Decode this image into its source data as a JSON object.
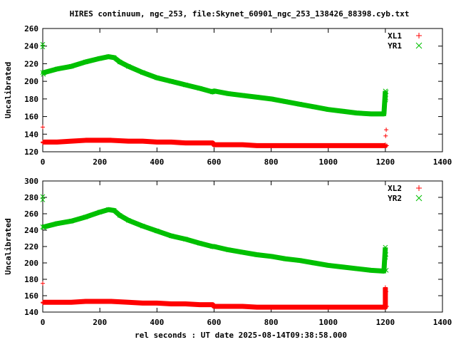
{
  "title": "HIRES continuum, ngc_253, file:Skynet_60901_ngc_253_138426_88398.cyb.txt",
  "xlabel": "rel seconds : UT date 2025-08-14T09:38:58.000",
  "chart_data": [
    {
      "type": "scatter",
      "ylabel": "Uncalibrated",
      "xlim": [
        0,
        1400
      ],
      "ylim": [
        120,
        260
      ],
      "xticks": [
        "0",
        "200",
        "400",
        "600",
        "800",
        "1000",
        "1200",
        "1400"
      ],
      "yticks": [
        "120",
        "140",
        "160",
        "180",
        "200",
        "220",
        "240",
        "260"
      ],
      "legend_position": "top-right",
      "series": [
        {
          "name": "XL1",
          "color": "#ff0000",
          "marker": "plus",
          "x": [
            0,
            0,
            1,
            1,
            3,
            5,
            50,
            100,
            150,
            200,
            240,
            300,
            350,
            400,
            450,
            500,
            550,
            595,
            600,
            650,
            700,
            750,
            800,
            850,
            900,
            950,
            1000,
            1050,
            1100,
            1150,
            1200,
            1200,
            1201,
            1203,
            1205
          ],
          "y": [
            148,
            131,
            131,
            130,
            131,
            131,
            131,
            132,
            133,
            133,
            133,
            132,
            132,
            131,
            131,
            130,
            130,
            130,
            128,
            128,
            128,
            127,
            127,
            127,
            127,
            127,
            127,
            127,
            127,
            127,
            127,
            128,
            138,
            145,
            127
          ]
        },
        {
          "name": "YR1",
          "color": "#00c000",
          "marker": "cross",
          "x": [
            0,
            0,
            0,
            2,
            5,
            50,
            100,
            150,
            200,
            230,
            250,
            270,
            300,
            350,
            400,
            450,
            500,
            550,
            595,
            600,
            650,
            700,
            750,
            800,
            850,
            900,
            950,
            1000,
            1050,
            1100,
            1150,
            1195,
            1200,
            1201,
            1202,
            1203
          ],
          "y": [
            242,
            239,
            210,
            208,
            210,
            214,
            217,
            222,
            226,
            228,
            227,
            222,
            217,
            210,
            204,
            200,
            196,
            192,
            188,
            189,
            186,
            184,
            182,
            180,
            177,
            174,
            171,
            168,
            166,
            164,
            163,
            163,
            189,
            179,
            181,
            188
          ]
        }
      ]
    },
    {
      "type": "scatter",
      "ylabel": "Uncalibrated",
      "xlim": [
        0,
        1400
      ],
      "ylim": [
        140,
        300
      ],
      "xticks": [
        "0",
        "200",
        "400",
        "600",
        "800",
        "1000",
        "1200",
        "1400"
      ],
      "yticks": [
        "140",
        "160",
        "180",
        "200",
        "220",
        "240",
        "260",
        "280",
        "300"
      ],
      "legend_position": "top-right",
      "series": [
        {
          "name": "XL2",
          "color": "#ff0000",
          "marker": "plus",
          "x": [
            0,
            0,
            1,
            2,
            5,
            50,
            100,
            150,
            200,
            240,
            300,
            350,
            400,
            450,
            500,
            550,
            595,
            600,
            650,
            700,
            750,
            800,
            850,
            900,
            950,
            1000,
            1050,
            1100,
            1150,
            1200,
            1200,
            1201,
            1203,
            1205
          ],
          "y": [
            175,
            152,
            151,
            152,
            152,
            152,
            152,
            153,
            153,
            153,
            152,
            151,
            151,
            150,
            150,
            149,
            149,
            147,
            147,
            147,
            146,
            146,
            146,
            146,
            146,
            146,
            146,
            146,
            146,
            146,
            170,
            162,
            165,
            147
          ]
        },
        {
          "name": "YR2",
          "color": "#00c000",
          "marker": "cross",
          "x": [
            0,
            0,
            0,
            2,
            5,
            50,
            100,
            150,
            200,
            230,
            250,
            270,
            300,
            350,
            400,
            450,
            500,
            550,
            595,
            600,
            650,
            700,
            750,
            800,
            850,
            900,
            950,
            1000,
            1050,
            1100,
            1150,
            1195,
            1200,
            1201,
            1202,
            1203
          ],
          "y": [
            281,
            277,
            244,
            243,
            244,
            248,
            251,
            256,
            262,
            265,
            264,
            258,
            252,
            245,
            239,
            233,
            229,
            224,
            220,
            220,
            216,
            213,
            210,
            208,
            205,
            203,
            200,
            197,
            195,
            193,
            191,
            190,
            219,
            207,
            210,
            191
          ]
        }
      ]
    }
  ]
}
